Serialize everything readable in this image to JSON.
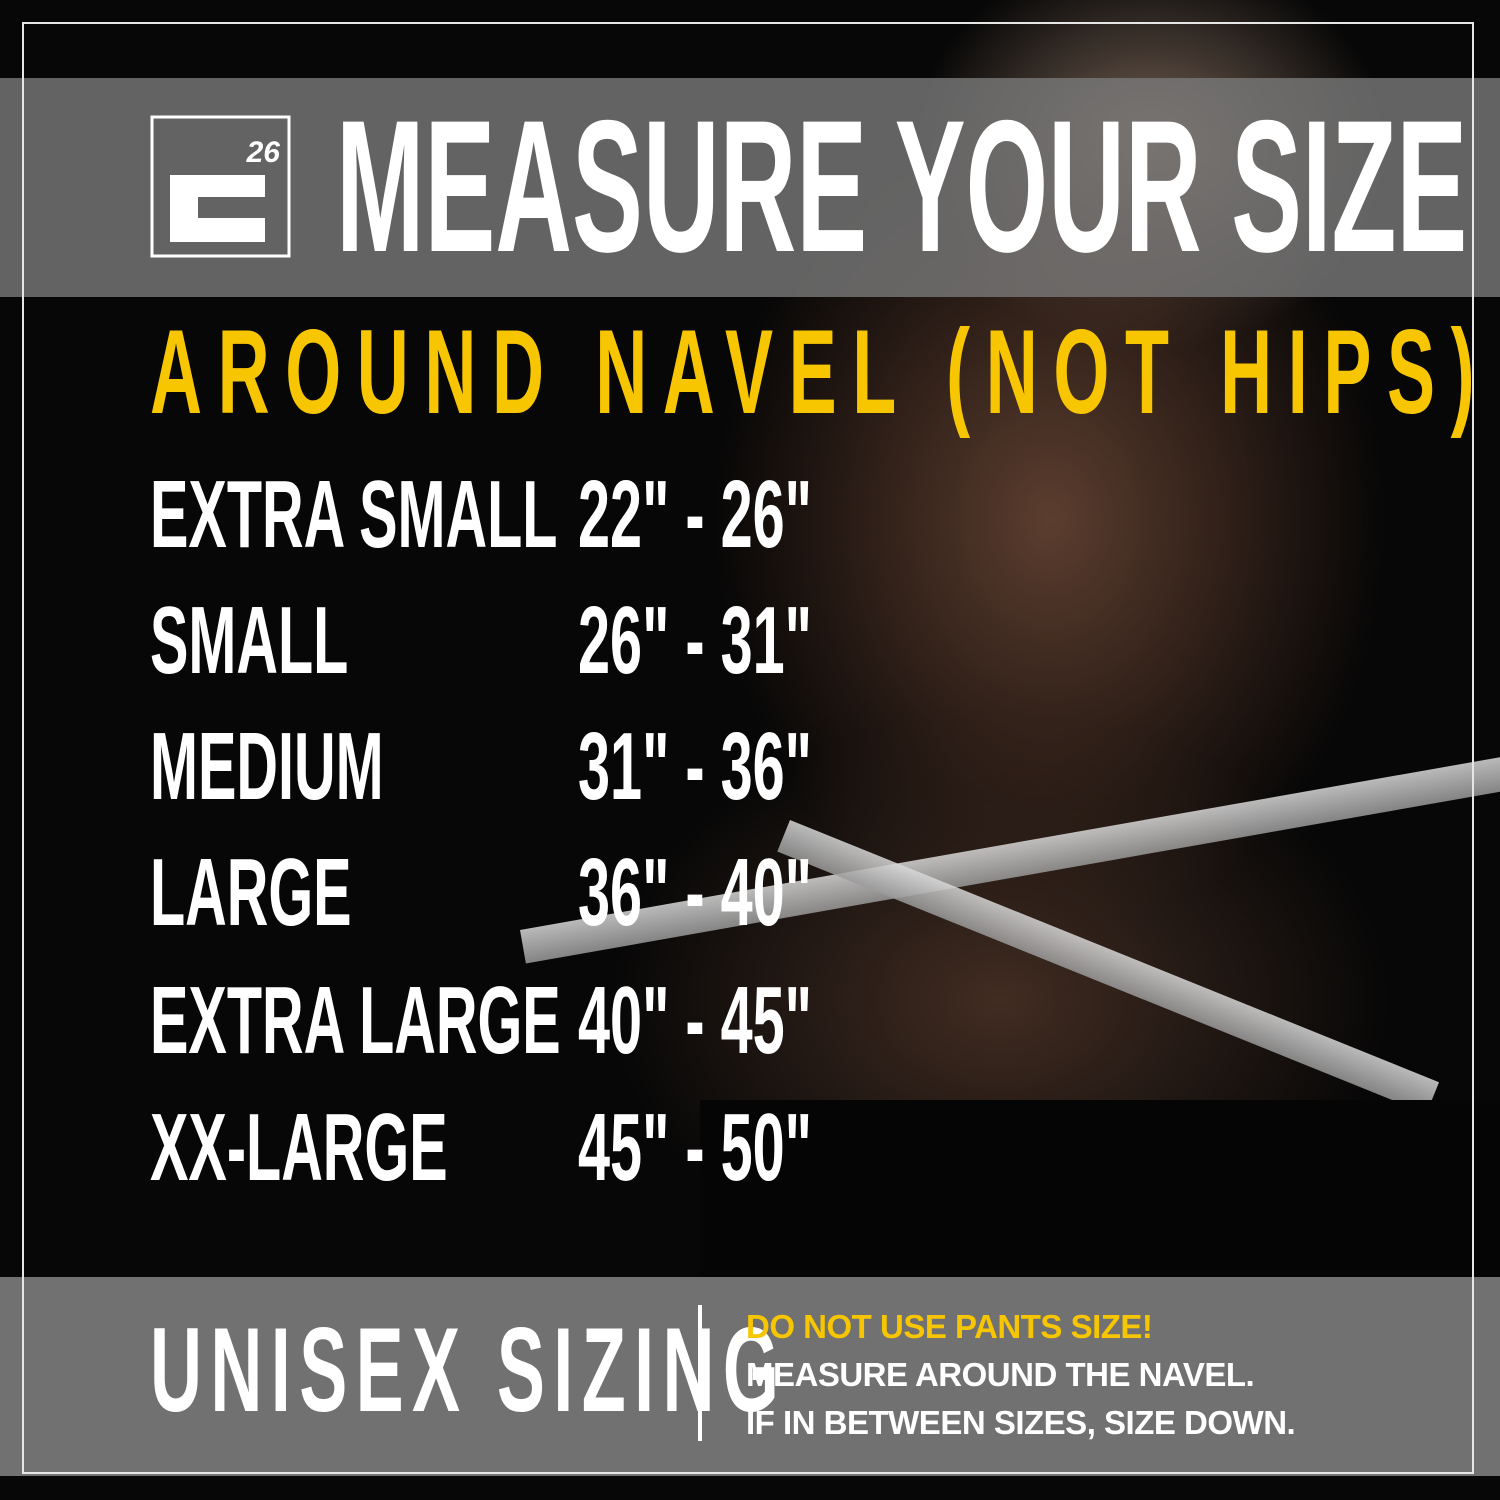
{
  "brand": {
    "logo_text": "E26",
    "logo_number": "26"
  },
  "header": {
    "title": "MEASURE YOUR SIZE"
  },
  "subtitle": "AROUND NAVEL (NOT HIPS)",
  "sizes": [
    {
      "label": "EXTRA SMALL",
      "range": "22\" - 26\""
    },
    {
      "label": "SMALL",
      "range": "26\" - 31\""
    },
    {
      "label": "MEDIUM",
      "range": "31\" - 36\""
    },
    {
      "label": "LARGE",
      "range": "36\" - 40\""
    },
    {
      "label": "EXTRA LARGE",
      "range": "40\" - 45\""
    },
    {
      "label": "XX-LARGE",
      "range": "45\" - 50\""
    }
  ],
  "footer": {
    "heading": "UNISEX SIZING",
    "warning": "DO NOT USE PANTS SIZE!",
    "line1": "MEASURE AROUND THE NAVEL.",
    "line2": "IF IN BETWEEN SIZES, SIZE DOWN."
  },
  "colors": {
    "accent": "#f7c600",
    "text": "#ffffff",
    "band": "#767676",
    "background": "#070707"
  }
}
